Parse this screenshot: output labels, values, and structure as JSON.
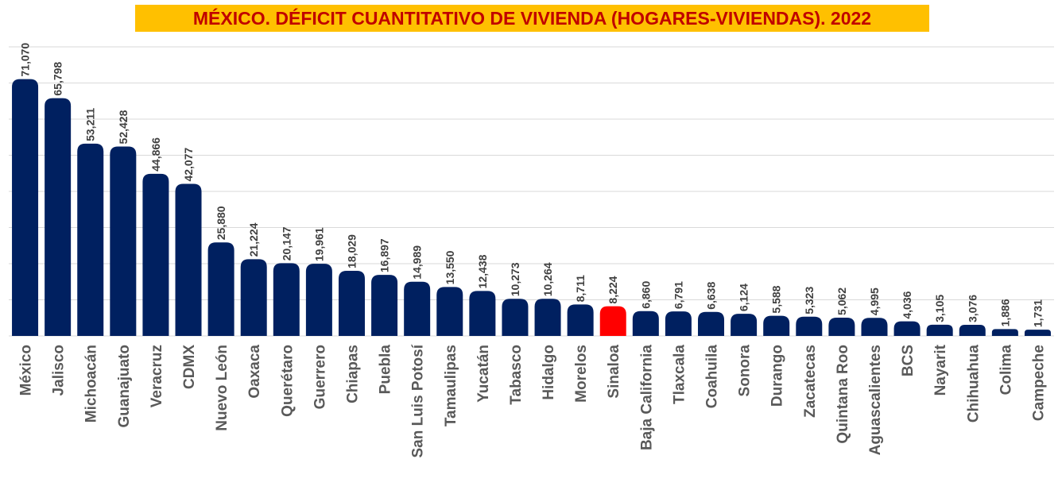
{
  "chart_data": {
    "type": "bar",
    "title": "MÉXICO. DÉFICIT CUANTITATIVO DE VIVIENDA (HOGARES-VIVIENDAS). 2022",
    "categories": [
      "México",
      "Jalisco",
      "Michoacán",
      "Guanajuato",
      "Veracruz",
      "CDMX",
      "Nuevo León",
      "Oaxaca",
      "Querétaro",
      "Guerrero",
      "Chiapas",
      "Puebla",
      "San Luis Potosí",
      "Tamaulipas",
      "Yucatán",
      "Tabasco",
      "Hidalgo",
      "Morelos",
      "Sinaloa",
      "Baja California",
      "Tlaxcala",
      "Coahuila",
      "Sonora",
      "Durango",
      "Zacatecas",
      "Quintana Roo",
      "Aguascalientes",
      "BCS",
      "Nayarit",
      "Chihuahua",
      "Colima",
      "Campeche"
    ],
    "values": [
      71070,
      65798,
      53211,
      52428,
      44866,
      42077,
      25880,
      21224,
      20147,
      19961,
      18029,
      16897,
      14989,
      13550,
      12438,
      10273,
      10264,
      8711,
      8224,
      6860,
      6791,
      6638,
      6124,
      5588,
      5323,
      5062,
      4995,
      4036,
      3105,
      3076,
      1886,
      1731
    ],
    "value_labels": [
      "71,070",
      "65,798",
      "53,211",
      "52,428",
      "44,866",
      "42,077",
      "25,880",
      "21,224",
      "20,147",
      "19,961",
      "18,029",
      "16,897",
      "14,989",
      "13,550",
      "12,438",
      "10,273",
      "10,264",
      "8,711",
      "8,224",
      "6,860",
      "6,791",
      "6,638",
      "6,124",
      "5,588",
      "5,323",
      "5,062",
      "4,995",
      "4,036",
      "3,105",
      "3,076",
      "1,886",
      "1,731"
    ],
    "ylim": [
      0,
      80000
    ],
    "grid_step": 10000,
    "grid": true,
    "bar_color": "#002060",
    "highlight_category": "Sinaloa",
    "highlight_color": "#ff0000",
    "xlabel": "",
    "ylabel": ""
  }
}
